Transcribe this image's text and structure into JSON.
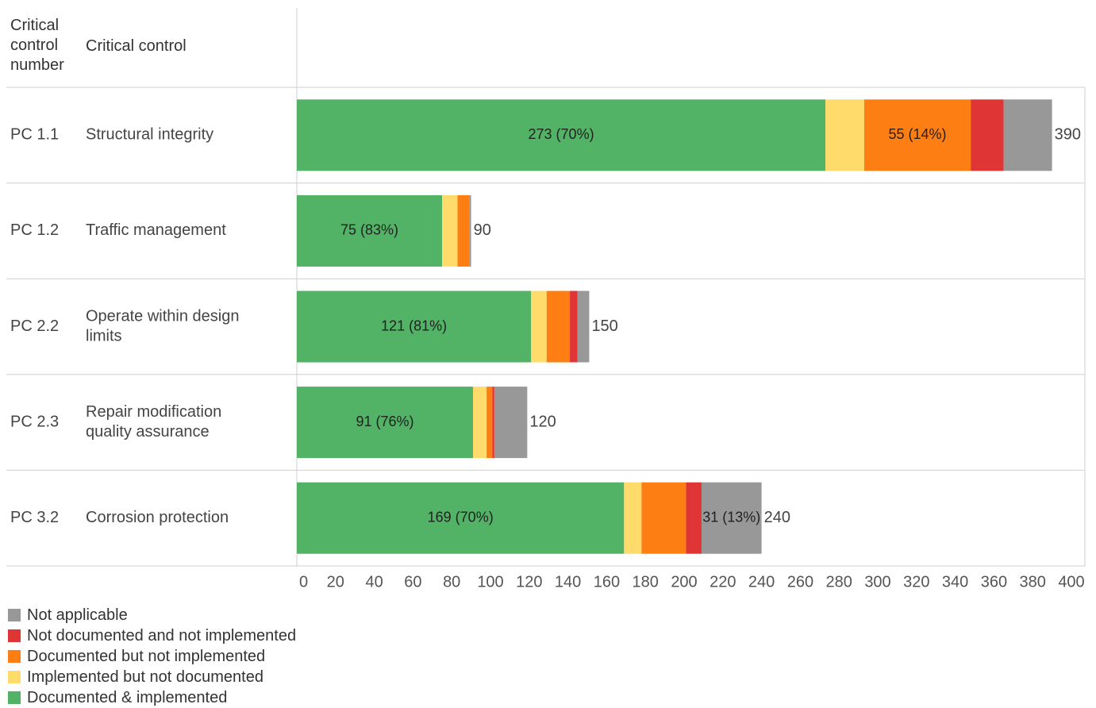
{
  "header": {
    "col1": "Critical control number",
    "col2": "Critical control"
  },
  "colors": {
    "Documented & implemented": "#52b266",
    "Implemented but not documented": "#fedb6a",
    "Documented but not implemented": "#fd7f13",
    "Not documented and not implemented": "#e03535",
    "Not applicable": "#989898"
  },
  "chart_data": {
    "type": "bar",
    "orientation": "horizontal",
    "stacked": true,
    "xlim": [
      0,
      400
    ],
    "xticks": [
      0,
      20,
      40,
      60,
      80,
      100,
      120,
      140,
      160,
      180,
      200,
      220,
      240,
      260,
      280,
      300,
      320,
      340,
      360,
      380,
      400
    ],
    "legend_position": "bottom-left",
    "rows": [
      {
        "number": "PC 1.1",
        "control": "Structural integrity",
        "total": "390"
      },
      {
        "number": "PC 1.2",
        "control": "Traffic management",
        "total": "90"
      },
      {
        "number": "PC 2.2",
        "control": "Operate within design limits",
        "total": "150"
      },
      {
        "number": "PC 2.3",
        "control": "Repair modification quality assurance",
        "total": "120"
      },
      {
        "number": "PC 3.2",
        "control": "Corrosion protection",
        "total": "240"
      }
    ],
    "series": [
      {
        "name": "Documented & implemented",
        "values": [
          273,
          75,
          121,
          91,
          169
        ],
        "labels": [
          "273 (70%)",
          "75 (83%)",
          "121 (81%)",
          "91 (76%)",
          "169 (70%)"
        ]
      },
      {
        "name": "Implemented but not documented",
        "values": [
          20,
          8,
          8,
          7,
          9
        ],
        "labels": [
          "",
          "",
          "",
          "",
          ""
        ]
      },
      {
        "name": "Documented but not implemented",
        "values": [
          55,
          6,
          12,
          3,
          23
        ],
        "labels": [
          "55 (14%)",
          "",
          "",
          "",
          ""
        ]
      },
      {
        "name": "Not documented and not implemented",
        "values": [
          17,
          0,
          4,
          1,
          8
        ],
        "labels": [
          "",
          "",
          "",
          "",
          ""
        ]
      },
      {
        "name": "Not applicable",
        "values": [
          25,
          1,
          6,
          17,
          31
        ],
        "labels": [
          "",
          "",
          "",
          "",
          "31 (13%)"
        ]
      }
    ]
  },
  "legend": [
    {
      "label": "Not applicable",
      "color": "#989898"
    },
    {
      "label": "Not documented and not implemented",
      "color": "#e03535"
    },
    {
      "label": "Documented but not implemented",
      "color": "#fd7f13"
    },
    {
      "label": "Implemented but not documented",
      "color": "#fedb6a"
    },
    {
      "label": "Documented & implemented",
      "color": "#52b266"
    }
  ]
}
